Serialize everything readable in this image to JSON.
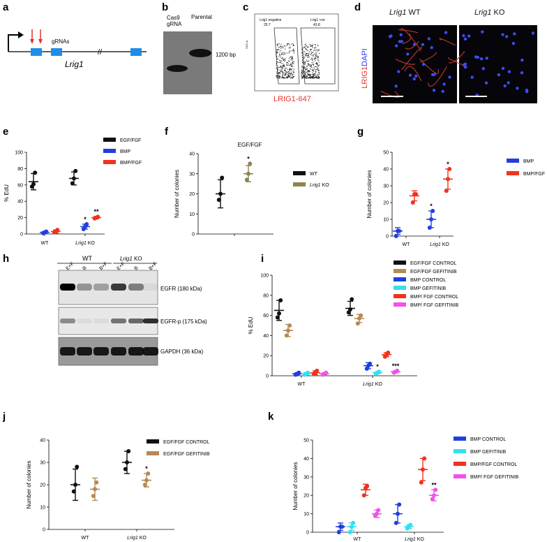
{
  "panels": {
    "a": {
      "label": "a",
      "gene": "Lrig1",
      "guides": "gRNAs",
      "break": "//"
    },
    "b": {
      "label": "b",
      "lane1": "Cas9\ngRNA",
      "lane2": "Parental",
      "size": "1200 bp"
    },
    "c": {
      "label": "c",
      "gate_left": "Lrig1 negative",
      "gate_left_val": "25.7",
      "gate_right": "Lrig1 +ve",
      "gate_right_val": "43.8",
      "yaxis": "SSC-A",
      "xaxis": "LRIG1-647"
    },
    "d": {
      "label": "d",
      "title_wt_gene": "Lrig1",
      "title_wt": " WT",
      "title_ko_gene": "Lrig1",
      "title_ko": " KO",
      "stain1": "LRIG1",
      "stain2": "DAPI"
    },
    "e": {
      "label": "e"
    },
    "f": {
      "label": "f"
    },
    "g": {
      "label": "g"
    },
    "h": {
      "label": "h",
      "group_wt": "WT",
      "group_ko_gene": "Lrig1",
      "group_ko": " KO",
      "lanes": [
        "E+F",
        "B",
        "B+F",
        "E+F",
        "B",
        "B+F"
      ],
      "bands": [
        "EGFR (180 kDa)",
        "EGFR-p (175 kDa)",
        "GAPDH (36 kDa)"
      ]
    },
    "i": {
      "label": "i"
    },
    "j": {
      "label": "j"
    },
    "k": {
      "label": "k"
    }
  },
  "colors": {
    "black": "#111111",
    "blue": "#1f3fe0",
    "red": "#f0321e",
    "olive": "#8c8550",
    "cyan": "#31e0f0",
    "magenta": "#f052ea",
    "tan": "#b58a55",
    "fp": "#c43a2a"
  },
  "chart_data": [
    {
      "panel": "e",
      "type": "scatter",
      "title": "",
      "ylabel": "% EdU",
      "ylim": [
        0,
        100
      ],
      "yticks": [
        0,
        20,
        40,
        60,
        80,
        100
      ],
      "categories": [
        "WT",
        "Lrig1 KO"
      ],
      "series": [
        {
          "name": "EGF/FGF",
          "color": "black",
          "mean": [
            64,
            68
          ],
          "err": [
            10,
            8
          ],
          "points": [
            [
              58,
              61,
              75
            ],
            [
              62,
              68,
              77
            ]
          ]
        },
        {
          "name": "BMP",
          "color": "blue",
          "mean": [
            2,
            9
          ],
          "err": [
            1,
            3
          ],
          "points": [
            [
              1,
              2,
              3
            ],
            [
              6,
              9,
              12
            ]
          ]
        },
        {
          "name": "BMP/FGF",
          "color": "red",
          "mean": [
            3,
            20
          ],
          "err": [
            2,
            1.5
          ],
          "points": [
            [
              2,
              3,
              5
            ],
            [
              19,
              20,
              21
            ]
          ]
        }
      ],
      "annotations": [
        {
          "cat": 1,
          "series": 1,
          "text": "*"
        },
        {
          "cat": 1,
          "series": 2,
          "text": "**"
        }
      ]
    },
    {
      "panel": "f",
      "type": "scatter",
      "title": "EGF/FGF",
      "ylabel": "Number of colonies",
      "ylim": [
        0,
        40
      ],
      "yticks": [
        0,
        10,
        20,
        30,
        40
      ],
      "categories": [
        ""
      ],
      "series": [
        {
          "name": "WT",
          "color": "black",
          "mean": [
            20
          ],
          "err": [
            7
          ],
          "points": [
            [
              17,
              20,
              28
            ]
          ]
        },
        {
          "name": "Lrig1 KO",
          "color": "olive",
          "mean": [
            30
          ],
          "err": [
            4
          ],
          "points": [
            [
              27,
              30,
              35
            ]
          ]
        }
      ],
      "annotations": [
        {
          "cat": 0,
          "series": 1,
          "text": "*"
        }
      ]
    },
    {
      "panel": "g",
      "type": "scatter",
      "title": "",
      "ylabel": "Number of colonies",
      "ylim": [
        0,
        50
      ],
      "yticks": [
        0,
        10,
        20,
        30,
        40,
        50
      ],
      "categories": [
        "WT",
        "Lrig1 KO"
      ],
      "series": [
        {
          "name": "BMP",
          "color": "blue",
          "mean": [
            3,
            10
          ],
          "err": [
            2,
            5
          ],
          "points": [
            [
              0,
              3,
              3
            ],
            [
              5,
              10,
              15
            ]
          ]
        },
        {
          "name": "BMP/FGF",
          "color": "red",
          "mean": [
            24,
            34
          ],
          "err": [
            3,
            6
          ],
          "points": [
            [
              20,
              25,
              25
            ],
            [
              27,
              34,
              40
            ]
          ]
        }
      ],
      "annotations": [
        {
          "cat": 1,
          "series": 0,
          "text": "*"
        },
        {
          "cat": 1,
          "series": 1,
          "text": "*"
        }
      ]
    },
    {
      "panel": "i",
      "type": "scatter",
      "title": "",
      "ylabel": "% EdU",
      "ylim": [
        0,
        100
      ],
      "yticks": [
        0,
        20,
        40,
        60,
        80,
        100
      ],
      "categories": [
        "WT",
        "Lrig1 KO"
      ],
      "series": [
        {
          "name": "EGF/FGF CONTROL",
          "color": "black",
          "mean": [
            65,
            67
          ],
          "err": [
            10,
            7
          ],
          "points": [
            [
              58,
              62,
              75
            ],
            [
              63,
              66,
              76
            ]
          ]
        },
        {
          "name": "EGF/FGF GEFITINIB",
          "color": "tan",
          "mean": [
            45,
            57
          ],
          "err": [
            6,
            4
          ],
          "points": [
            [
              40,
              45,
              50
            ],
            [
              52,
              57,
              60
            ]
          ]
        },
        {
          "name": "BMP CONTROL",
          "color": "blue",
          "mean": [
            2,
            10
          ],
          "err": [
            1,
            3
          ],
          "points": [
            [
              1,
              2,
              3
            ],
            [
              7,
              10,
              12
            ]
          ]
        },
        {
          "name": "BMP GEFITINIB",
          "color": "cyan",
          "mean": [
            2,
            3
          ],
          "err": [
            1,
            1
          ],
          "points": [
            [
              1,
              2,
              3
            ],
            [
              2,
              3,
              4
            ]
          ]
        },
        {
          "name": "BMP/ FGF CONTROL",
          "color": "red",
          "mean": [
            3,
            21
          ],
          "err": [
            2,
            2
          ],
          "points": [
            [
              2,
              3,
              5
            ],
            [
              19,
              21,
              23
            ]
          ]
        },
        {
          "name": "BMP/ FGF GEFITINIB",
          "color": "magenta",
          "mean": [
            2,
            4
          ],
          "err": [
            1,
            1
          ],
          "points": [
            [
              1,
              2,
              3
            ],
            [
              3,
              4,
              5
            ]
          ]
        }
      ],
      "annotations": [
        {
          "cat": 1,
          "series": 3,
          "text": "*"
        },
        {
          "cat": 1,
          "series": 5,
          "text": "***"
        }
      ]
    },
    {
      "panel": "j",
      "type": "scatter",
      "title": "",
      "ylabel": "Number of colonies",
      "ylim": [
        0,
        40
      ],
      "yticks": [
        0,
        10,
        20,
        30,
        40
      ],
      "categories": [
        "WT",
        "Lrig1 KO"
      ],
      "series": [
        {
          "name": "EGF/FGF CONTROL",
          "color": "black",
          "mean": [
            20,
            30
          ],
          "err": [
            7,
            5
          ],
          "points": [
            [
              17,
              20,
              28
            ],
            [
              27,
              30,
              35
            ]
          ]
        },
        {
          "name": "EGF/FGF GEFITINIB",
          "color": "tan",
          "mean": [
            18,
            22
          ],
          "err": [
            5,
            3
          ],
          "points": [
            [
              15,
              18,
              21
            ],
            [
              20,
              22,
              25
            ]
          ]
        }
      ],
      "annotations": [
        {
          "cat": 1,
          "series": 1,
          "text": "*"
        }
      ]
    },
    {
      "panel": "k",
      "type": "scatter",
      "title": "",
      "ylabel": "Number of colonies",
      "ylim": [
        0,
        50
      ],
      "yticks": [
        0,
        10,
        20,
        30,
        40,
        50
      ],
      "categories": [
        "WT",
        "Lrig1 KO"
      ],
      "series": [
        {
          "name": "BMP CONTROL",
          "color": "blue",
          "mean": [
            3,
            10
          ],
          "err": [
            2,
            5
          ],
          "points": [
            [
              0,
              3,
              3
            ],
            [
              5,
              10,
              15
            ]
          ]
        },
        {
          "name": "BMP GEFITINIB",
          "color": "cyan",
          "mean": [
            3,
            3
          ],
          "err": [
            2,
            1
          ],
          "points": [
            [
              0,
              3,
              5
            ],
            [
              2,
              3,
              4
            ]
          ]
        },
        {
          "name": "BMP/FGF CONTROL",
          "color": "red",
          "mean": [
            23,
            34
          ],
          "err": [
            3,
            6
          ],
          "points": [
            [
              20,
              24,
              25
            ],
            [
              27,
              34,
              40
            ]
          ]
        },
        {
          "name": "BMP/ FGF GEFITINIB",
          "color": "magenta",
          "mean": [
            10,
            20
          ],
          "err": [
            2,
            3
          ],
          "points": [
            [
              9,
              10,
              12
            ],
            [
              18,
              20,
              23
            ]
          ]
        }
      ],
      "annotations": [
        {
          "cat": 1,
          "series": 3,
          "text": "**"
        }
      ]
    }
  ]
}
